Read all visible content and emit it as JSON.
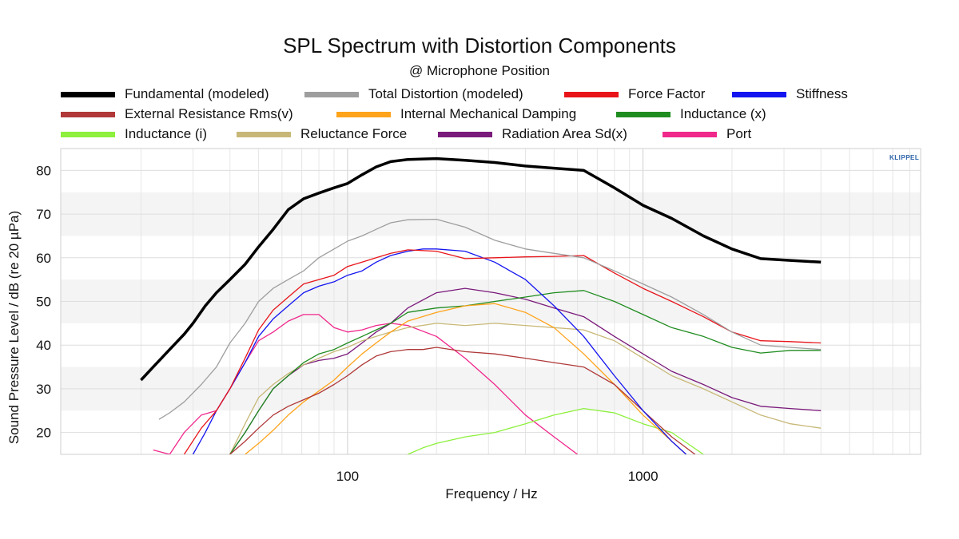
{
  "chart_data": {
    "type": "line",
    "title": "SPL Spectrum with Distortion Components",
    "subtitle": "@ Microphone Position",
    "xlabel": "Frequency / Hz",
    "ylabel": "Sound Pressure Level / dB (re 20 µPa)",
    "x_scale": "log",
    "xlim": [
      10.7,
      8700
    ],
    "ylim": [
      15,
      85
    ],
    "xticks": [
      100,
      1000
    ],
    "xtick_labels": [
      "100",
      "1000"
    ],
    "yticks": [
      20,
      30,
      40,
      50,
      60,
      70,
      80
    ],
    "ytick_labels": [
      "20",
      "30",
      "40",
      "50",
      "60",
      "70",
      "80"
    ],
    "grid": true,
    "legend_placement": "top",
    "watermark": "KLIPPEL",
    "series": [
      {
        "name": "Fundamental (modeled)",
        "color": "#000000",
        "x": [
          20,
          22,
          25,
          28,
          30,
          33,
          36,
          40,
          45,
          50,
          56,
          63,
          71,
          80,
          90,
          100,
          112,
          125,
          140,
          160,
          180,
          200,
          250,
          315,
          400,
          500,
          630,
          800,
          1000,
          1250,
          1600,
          2000,
          2500,
          3150,
          4000
        ],
        "y": [
          32,
          35,
          39,
          42.5,
          45,
          49,
          52,
          55,
          58.5,
          62.5,
          66.5,
          71,
          73.5,
          74.8,
          76,
          77,
          79,
          80.8,
          82,
          82.5,
          82.6,
          82.7,
          82.3,
          81.8,
          81,
          80.5,
          80,
          76,
          72,
          69,
          65,
          62,
          59.8,
          59.4,
          59
        ]
      },
      {
        "name": "Total Distortion (modeled)",
        "color": "#9e9e9e",
        "x": [
          23,
          25,
          28,
          32,
          36,
          40,
          45,
          50,
          56,
          63,
          71,
          80,
          90,
          100,
          112,
          125,
          140,
          160,
          200,
          250,
          315,
          400,
          500,
          630,
          800,
          1000,
          1250,
          1600,
          2000,
          2500,
          3150,
          4000
        ],
        "y": [
          23,
          24.5,
          27,
          31,
          35,
          40.5,
          45,
          50,
          53,
          55,
          57,
          60,
          62,
          63.8,
          65,
          66.5,
          68,
          68.7,
          68.8,
          67,
          64,
          62,
          61,
          60,
          57,
          54,
          51,
          47,
          43,
          40,
          39.5,
          39
        ]
      },
      {
        "name": "Force Factor",
        "color": "#e8141a",
        "x": [
          28,
          32,
          36,
          40,
          45,
          50,
          56,
          63,
          71,
          80,
          90,
          100,
          112,
          125,
          140,
          160,
          200,
          250,
          315,
          400,
          500,
          630,
          800,
          1000,
          1250,
          1600,
          2000,
          2500,
          3150,
          4000
        ],
        "y": [
          15,
          21,
          25,
          30,
          37,
          43.5,
          48,
          51,
          54,
          55,
          56,
          58,
          59,
          60,
          61,
          61.8,
          61.5,
          59.8,
          60,
          60.2,
          60.3,
          60.5,
          56.5,
          53,
          50,
          46.5,
          43,
          41,
          40.8,
          40.5
        ]
      },
      {
        "name": "Stiffness",
        "color": "#1414f0",
        "x": [
          30,
          33,
          36,
          40,
          45,
          50,
          56,
          63,
          71,
          80,
          90,
          100,
          112,
          125,
          140,
          160,
          180,
          200,
          250,
          315,
          400,
          500,
          630,
          800,
          1000,
          1250,
          1400
        ],
        "y": [
          15,
          20,
          25,
          30,
          36,
          42,
          46,
          49,
          52,
          53.5,
          54.5,
          56,
          57,
          59,
          60.5,
          61.5,
          62,
          62,
          61.5,
          59,
          55,
          49,
          42,
          33,
          25,
          18,
          15
        ]
      },
      {
        "name": "External  Resistance Rms(v)",
        "color": "#b03838",
        "x": [
          40,
          45,
          50,
          56,
          63,
          71,
          80,
          90,
          100,
          112,
          125,
          140,
          160,
          180,
          200,
          250,
          315,
          400,
          500,
          630,
          800,
          1000,
          1250,
          1500
        ],
        "y": [
          15,
          18,
          21,
          24,
          26,
          27.5,
          29,
          31,
          33,
          35.5,
          37.5,
          38.5,
          39,
          39,
          39.5,
          38.5,
          38,
          37,
          36,
          35,
          31,
          25,
          19,
          15
        ]
      },
      {
        "name": "Internal Mechanical Damping",
        "color": "#ffa31a",
        "x": [
          45,
          50,
          56,
          63,
          71,
          80,
          90,
          100,
          112,
          125,
          140,
          160,
          200,
          250,
          315,
          400,
          500,
          630,
          800,
          1000,
          1250,
          1400
        ],
        "y": [
          15,
          17.5,
          20.5,
          24,
          27,
          29.5,
          32,
          35,
          38,
          40.5,
          43,
          45.5,
          47.5,
          49,
          49.5,
          47.5,
          44,
          38,
          31,
          24,
          18,
          15
        ]
      },
      {
        "name": "Inductance (x)",
        "color": "#1f8c1f",
        "x": [
          40,
          45,
          50,
          56,
          63,
          71,
          80,
          90,
          100,
          112,
          125,
          140,
          160,
          200,
          250,
          315,
          400,
          500,
          630,
          800,
          1000,
          1250,
          1600,
          2000,
          2500,
          3150,
          4000
        ],
        "y": [
          15,
          20,
          25,
          30,
          33,
          36,
          38,
          39,
          40.5,
          42,
          43.5,
          45,
          47.5,
          48.5,
          49,
          50,
          51,
          52,
          52.5,
          50,
          47,
          44,
          42,
          39.5,
          38.2,
          38.8,
          38.8
        ]
      },
      {
        "name": "Inductance (i)",
        "color": "#8cf03c",
        "x": [
          160,
          180,
          200,
          250,
          315,
          400,
          500,
          630,
          800,
          1000,
          1250,
          1600
        ],
        "y": [
          15,
          16.5,
          17.5,
          19,
          20,
          22,
          24,
          25.5,
          24.5,
          22,
          20,
          15
        ]
      },
      {
        "name": "Reluctance Force",
        "color": "#c8b878",
        "x": [
          40,
          45,
          50,
          56,
          63,
          71,
          80,
          90,
          100,
          112,
          125,
          140,
          160,
          200,
          250,
          315,
          400,
          500,
          630,
          800,
          1000,
          1250,
          1600,
          2000,
          2500,
          3150,
          4000
        ],
        "y": [
          15,
          22,
          28,
          31,
          33.5,
          35.5,
          37,
          38.5,
          39.5,
          41,
          42,
          43,
          44,
          45,
          44.5,
          45,
          44.5,
          44,
          43.5,
          41,
          37,
          33,
          30,
          27,
          24,
          22,
          21
        ]
      },
      {
        "name": "Radiation Area Sd(x)",
        "color": "#7a1a7a",
        "x": [
          40,
          45,
          50,
          56,
          63,
          71,
          80,
          90,
          100,
          112,
          125,
          140,
          160,
          200,
          250,
          315,
          400,
          500,
          630,
          800,
          1000,
          1250,
          1600,
          2000,
          2500,
          3150,
          4000
        ],
        "y": [
          15,
          20,
          25,
          30,
          33,
          35.5,
          36.5,
          37,
          38,
          40.5,
          43,
          45,
          48.5,
          52,
          53,
          52,
          50.5,
          48.5,
          46.5,
          42,
          38,
          34,
          31,
          28,
          26,
          25.5,
          25
        ]
      },
      {
        "name": "Port",
        "color": "#f0288c",
        "x": [
          22,
          25,
          28,
          32,
          36,
          40,
          45,
          50,
          56,
          63,
          71,
          80,
          90,
          100,
          112,
          125,
          140,
          160,
          200,
          250,
          315,
          400,
          500,
          600
        ],
        "y": [
          16,
          15,
          20,
          24,
          25,
          30,
          36,
          41,
          43,
          45.5,
          47,
          47,
          44,
          43,
          43.5,
          44.5,
          45,
          44.5,
          42,
          37,
          31,
          24,
          19,
          15
        ]
      }
    ]
  }
}
